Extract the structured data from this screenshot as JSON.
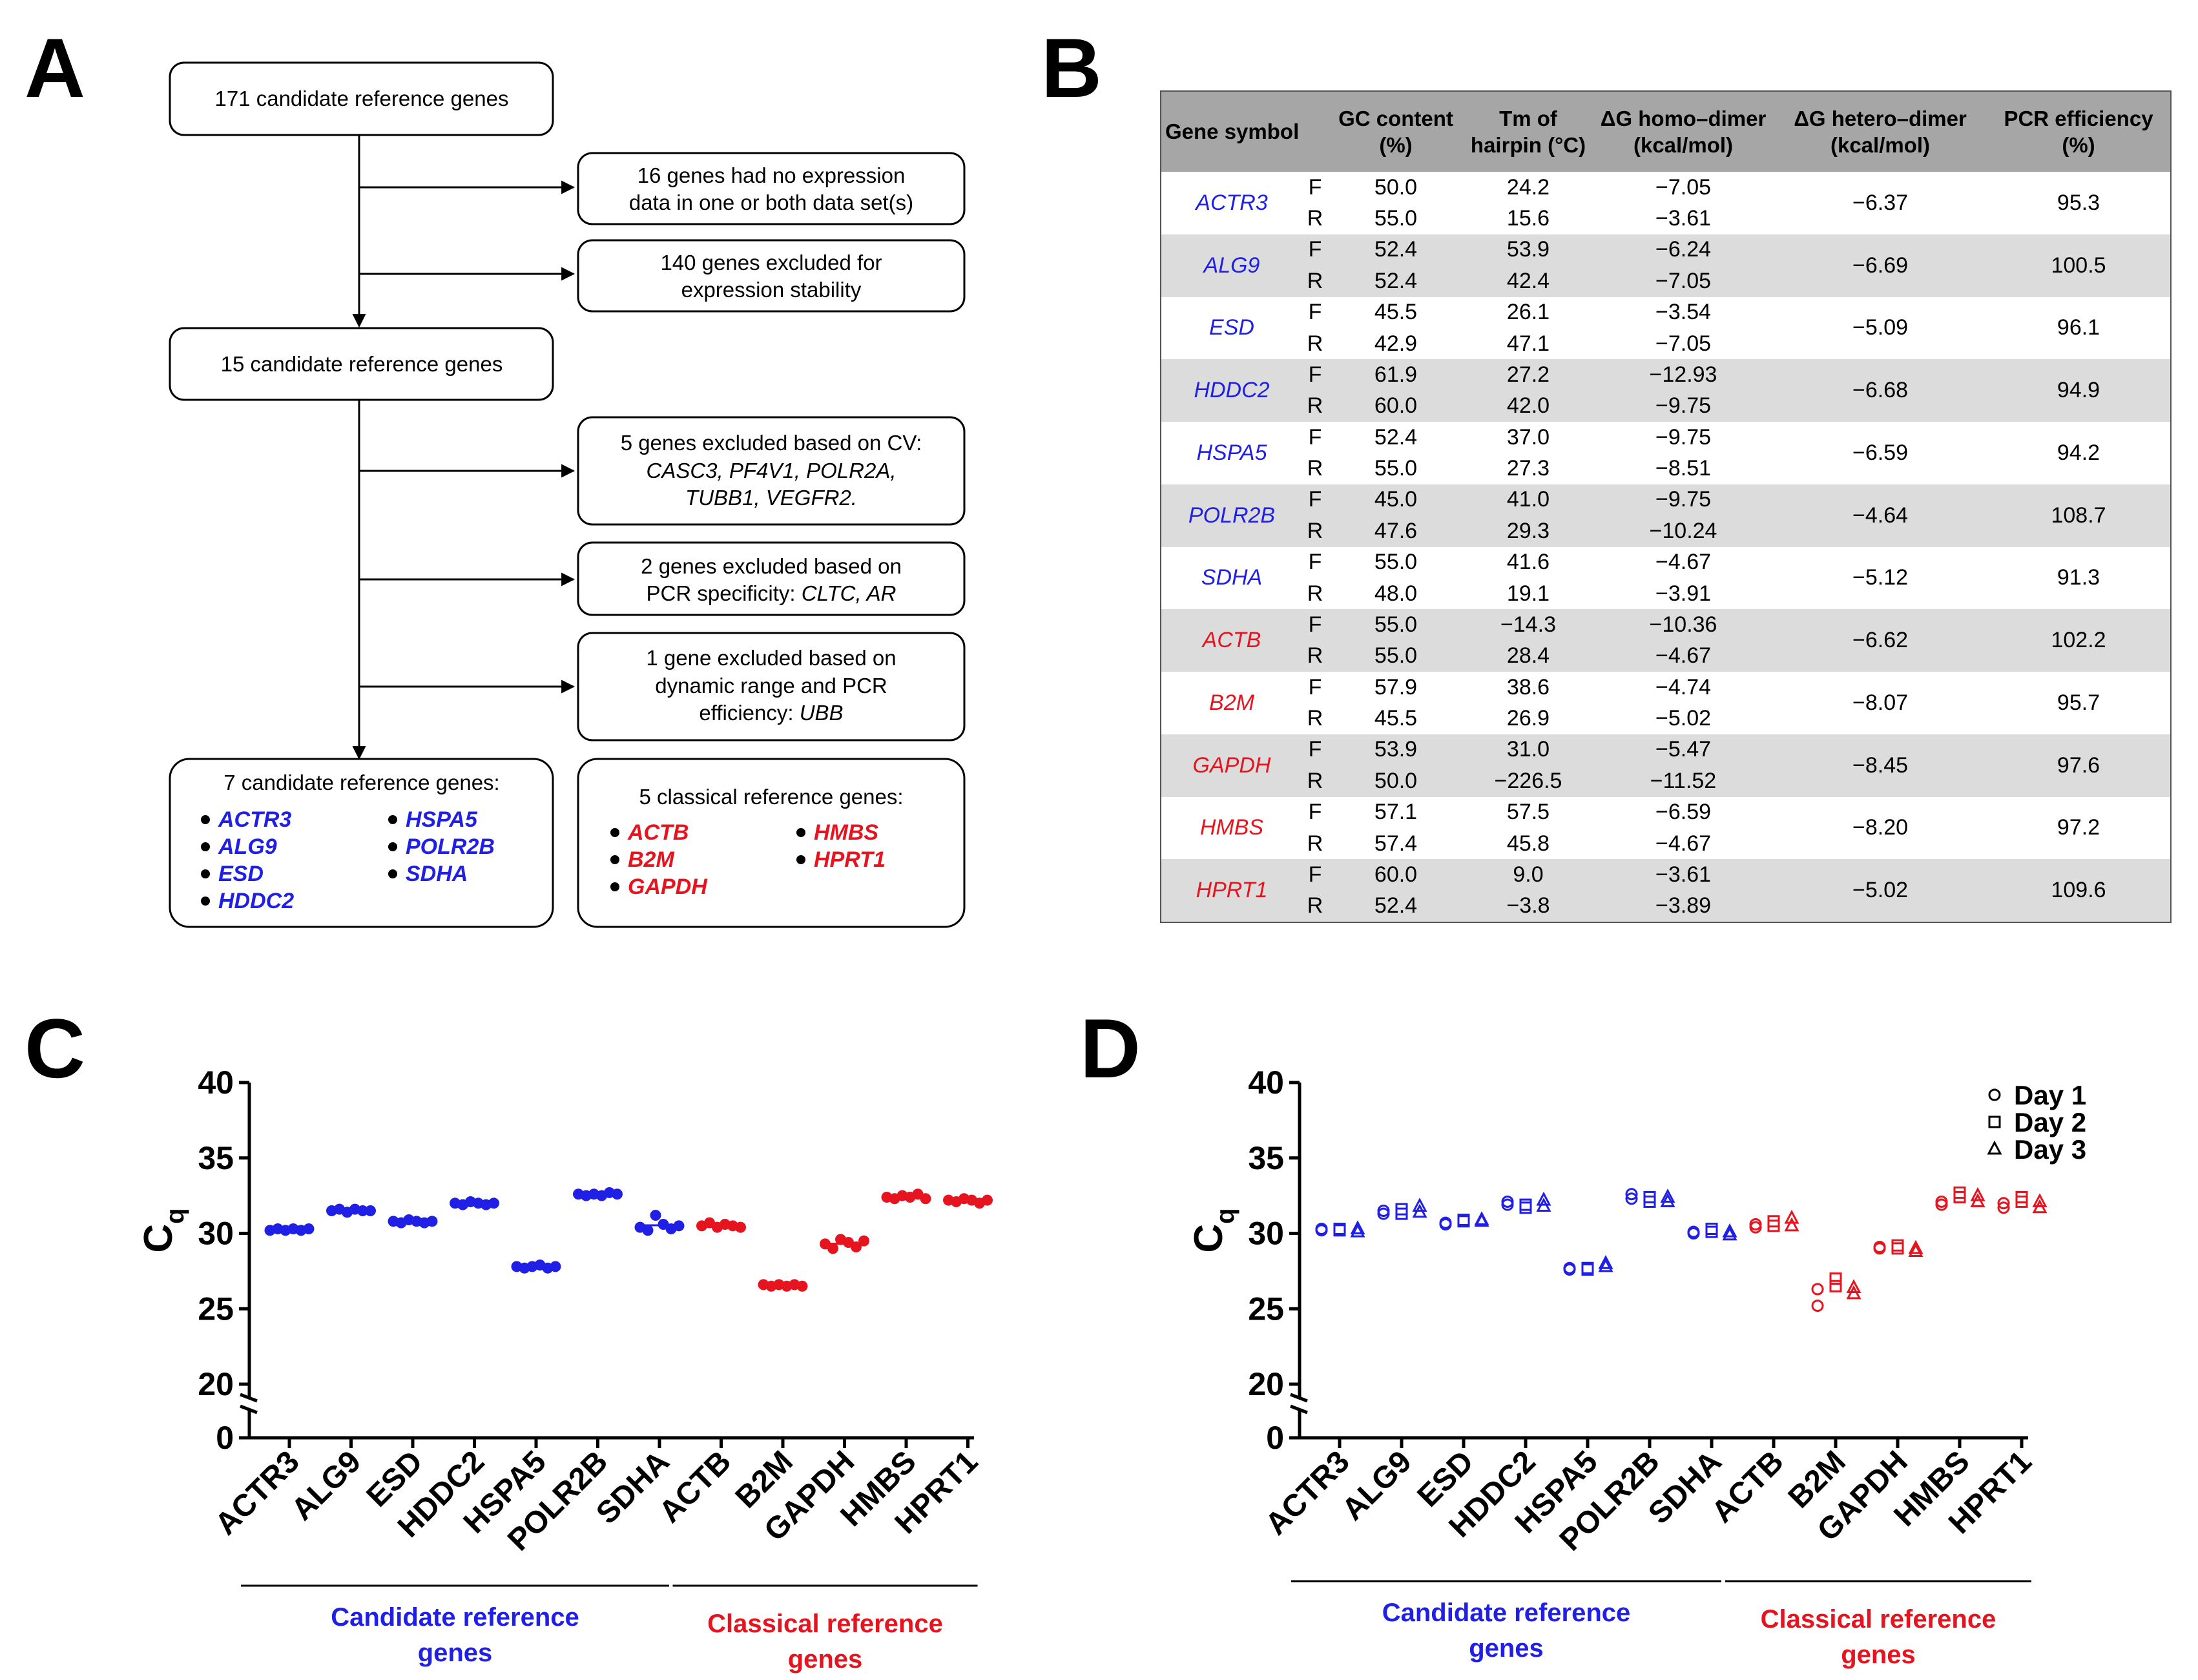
{
  "panels": {
    "a": "A",
    "b": "B",
    "c": "C",
    "d": "D"
  },
  "colors": {
    "candidate": "#1f1fe6",
    "classical": "#e6141e",
    "table_header": "#a6a6a6",
    "table_shade": "#dcdcdc"
  },
  "flowchart": {
    "box1": "171 candidate reference genes",
    "excl1": [
      "16 genes had no expression",
      "data in one or both data set(s)"
    ],
    "excl2": [
      "140 genes excluded for",
      "expression stability"
    ],
    "box2": "15 candidate reference genes",
    "excl3": {
      "line1": "5 genes excluded based on CV:",
      "line2": "CASC3, PF4V1, POLR2A,",
      "line3": "TUBB1, VEGFR2."
    },
    "excl4": {
      "line1": "2 genes excluded based on",
      "line2_plain": "PCR specificity: ",
      "line2_italic": "CLTC, AR"
    },
    "excl5": {
      "line1": "1 gene excluded based on",
      "line2": "dynamic range and PCR",
      "line3_plain": "efficiency: ",
      "line3_italic": "UBB"
    },
    "candidate_box": {
      "title": "7 candidate reference genes:",
      "col1": [
        "ACTR3",
        "ALG9",
        "ESD",
        "HDDC2"
      ],
      "col2": [
        "HSPA5",
        "POLR2B",
        "SDHA"
      ]
    },
    "classical_box": {
      "title": "5 classical reference genes:",
      "col1": [
        "ACTB",
        "B2M",
        "GAPDH"
      ],
      "col2": [
        "HMBS",
        "HPRT1"
      ]
    }
  },
  "table": {
    "headers": [
      "Gene symbol",
      "GC content (%)",
      "Tm of hairpin (°C)",
      "ΔG homo–dimer (kcal/mol)",
      "ΔG hetero–dimer (kcal/mol)",
      "PCR efficiency (%)"
    ],
    "rows": [
      {
        "gene": "ACTR3",
        "group": "candidate",
        "F": {
          "gc": "50.0",
          "tm": "24.2",
          "homo": "−7.05"
        },
        "R": {
          "gc": "55.0",
          "tm": "15.6",
          "homo": "−3.61"
        },
        "hetero": "−6.37",
        "eff": "95.3"
      },
      {
        "gene": "ALG9",
        "group": "candidate",
        "F": {
          "gc": "52.4",
          "tm": "53.9",
          "homo": "−6.24"
        },
        "R": {
          "gc": "52.4",
          "tm": "42.4",
          "homo": "−7.05"
        },
        "hetero": "−6.69",
        "eff": "100.5"
      },
      {
        "gene": "ESD",
        "group": "candidate",
        "F": {
          "gc": "45.5",
          "tm": "26.1",
          "homo": "−3.54"
        },
        "R": {
          "gc": "42.9",
          "tm": "47.1",
          "homo": "−7.05"
        },
        "hetero": "−5.09",
        "eff": "96.1"
      },
      {
        "gene": "HDDC2",
        "group": "candidate",
        "F": {
          "gc": "61.9",
          "tm": "27.2",
          "homo": "−12.93"
        },
        "R": {
          "gc": "60.0",
          "tm": "42.0",
          "homo": "−9.75"
        },
        "hetero": "−6.68",
        "eff": "94.9"
      },
      {
        "gene": "HSPA5",
        "group": "candidate",
        "F": {
          "gc": "52.4",
          "tm": "37.0",
          "homo": "−9.75"
        },
        "R": {
          "gc": "55.0",
          "tm": "27.3",
          "homo": "−8.51"
        },
        "hetero": "−6.59",
        "eff": "94.2"
      },
      {
        "gene": "POLR2B",
        "group": "candidate",
        "F": {
          "gc": "45.0",
          "tm": "41.0",
          "homo": "−9.75"
        },
        "R": {
          "gc": "47.6",
          "tm": "29.3",
          "homo": "−10.24"
        },
        "hetero": "−4.64",
        "eff": "108.7"
      },
      {
        "gene": "SDHA",
        "group": "candidate",
        "F": {
          "gc": "55.0",
          "tm": "41.6",
          "homo": "−4.67"
        },
        "R": {
          "gc": "48.0",
          "tm": "19.1",
          "homo": "−3.91"
        },
        "hetero": "−5.12",
        "eff": "91.3"
      },
      {
        "gene": "ACTB",
        "group": "classical",
        "F": {
          "gc": "55.0",
          "tm": "−14.3",
          "homo": "−10.36"
        },
        "R": {
          "gc": "55.0",
          "tm": "28.4",
          "homo": "−4.67"
        },
        "hetero": "−6.62",
        "eff": "102.2"
      },
      {
        "gene": "B2M",
        "group": "classical",
        "F": {
          "gc": "57.9",
          "tm": "38.6",
          "homo": "−4.74"
        },
        "R": {
          "gc": "45.5",
          "tm": "26.9",
          "homo": "−5.02"
        },
        "hetero": "−8.07",
        "eff": "95.7"
      },
      {
        "gene": "GAPDH",
        "group": "classical",
        "F": {
          "gc": "53.9",
          "tm": "31.0",
          "homo": "−5.47"
        },
        "R": {
          "gc": "50.0",
          "tm": "−226.5",
          "homo": "−11.52"
        },
        "hetero": "−8.45",
        "eff": "97.6"
      },
      {
        "gene": "HMBS",
        "group": "classical",
        "F": {
          "gc": "57.1",
          "tm": "57.5",
          "homo": "−6.59"
        },
        "R": {
          "gc": "57.4",
          "tm": "45.8",
          "homo": "−4.67"
        },
        "hetero": "−8.20",
        "eff": "97.2"
      },
      {
        "gene": "HPRT1",
        "group": "classical",
        "F": {
          "gc": "60.0",
          "tm": "9.0",
          "homo": "−3.61"
        },
        "R": {
          "gc": "52.4",
          "tm": "−3.8",
          "homo": "−3.89"
        },
        "hetero": "−5.02",
        "eff": "109.6"
      }
    ]
  },
  "chart_data": [
    {
      "panel": "C",
      "type": "scatter",
      "ylabel": "Cq",
      "yticks": [
        0,
        20,
        25,
        30,
        35,
        40
      ],
      "ylim": [
        20,
        40
      ],
      "axis_break": true,
      "categories": [
        "ACTR3",
        "ALG9",
        "ESD",
        "HDDC2",
        "HSPA5",
        "POLR2B",
        "SDHA",
        "ACTB",
        "B2M",
        "GAPDH",
        "HMBS",
        "HPRT1"
      ],
      "colors": [
        "#1f1fe6",
        "#1f1fe6",
        "#1f1fe6",
        "#1f1fe6",
        "#1f1fe6",
        "#1f1fe6",
        "#1f1fe6",
        "#e6141e",
        "#e6141e",
        "#e6141e",
        "#e6141e",
        "#e6141e"
      ],
      "values": [
        [
          30.2,
          30.3,
          30.2,
          30.3,
          30.2,
          30.3
        ],
        [
          31.5,
          31.6,
          31.4,
          31.6,
          31.5,
          31.5
        ],
        [
          30.8,
          30.7,
          30.9,
          30.8,
          30.7,
          30.8
        ],
        [
          32.0,
          31.9,
          32.1,
          32.0,
          31.9,
          32.0
        ],
        [
          27.8,
          27.7,
          27.8,
          27.9,
          27.7,
          27.8
        ],
        [
          32.6,
          32.5,
          32.6,
          32.5,
          32.7,
          32.6
        ],
        [
          30.4,
          30.2,
          31.2,
          30.6,
          30.3,
          30.5
        ],
        [
          30.5,
          30.7,
          30.4,
          30.6,
          30.5,
          30.4
        ],
        [
          26.6,
          26.5,
          26.6,
          26.5,
          26.6,
          26.5
        ],
        [
          29.3,
          29.0,
          29.6,
          29.4,
          29.1,
          29.5
        ],
        [
          32.4,
          32.3,
          32.5,
          32.4,
          32.6,
          32.3
        ],
        [
          32.2,
          32.1,
          32.3,
          32.2,
          32.0,
          32.2
        ]
      ],
      "group_labels": [
        {
          "lines": [
            "Candidate reference",
            "genes"
          ],
          "color": "#1f1fe6"
        },
        {
          "lines": [
            "Classical reference",
            "genes"
          ],
          "color": "#e6141e"
        }
      ]
    },
    {
      "panel": "D",
      "type": "scatter",
      "ylabel": "Cq",
      "yticks": [
        0,
        20,
        25,
        30,
        35,
        40
      ],
      "ylim": [
        20,
        40
      ],
      "axis_break": true,
      "categories": [
        "ACTR3",
        "ALG9",
        "ESD",
        "HDDC2",
        "HSPA5",
        "POLR2B",
        "SDHA",
        "ACTB",
        "B2M",
        "GAPDH",
        "HMBS",
        "HPRT1"
      ],
      "colors": [
        "#1f1fe6",
        "#1f1fe6",
        "#1f1fe6",
        "#1f1fe6",
        "#1f1fe6",
        "#1f1fe6",
        "#1f1fe6",
        "#e6141e",
        "#e6141e",
        "#e6141e",
        "#e6141e",
        "#e6141e"
      ],
      "legend": [
        "Day 1",
        "Day 2",
        "Day 3"
      ],
      "legend_markers": [
        "circle",
        "square",
        "triangle"
      ],
      "legend_position": "top-right",
      "series": [
        {
          "name": "Day 1",
          "marker": "circle",
          "values": [
            [
              30.3,
              30.2
            ],
            [
              31.5,
              31.3
            ],
            [
              30.7,
              30.6
            ],
            [
              32.1,
              31.9
            ],
            [
              27.6,
              27.7
            ],
            [
              32.6,
              32.3
            ],
            [
              30.1,
              30.0
            ],
            [
              30.6,
              30.4
            ],
            [
              26.3,
              25.2
            ],
            [
              29.1,
              29.0
            ],
            [
              32.1,
              31.9
            ],
            [
              32.0,
              31.7
            ]
          ]
        },
        {
          "name": "Day 2",
          "marker": "square",
          "values": [
            [
              30.3,
              30.2
            ],
            [
              31.6,
              31.3
            ],
            [
              30.9,
              30.8
            ],
            [
              31.9,
              31.7
            ],
            [
              27.6,
              27.7
            ],
            [
              32.4,
              32.1
            ],
            [
              30.3,
              30.1
            ],
            [
              30.8,
              30.5
            ],
            [
              27.0,
              26.5
            ],
            [
              29.2,
              29.0
            ],
            [
              32.7,
              32.4
            ],
            [
              32.4,
              32.1
            ]
          ]
        },
        {
          "name": "Day 3",
          "marker": "triangle",
          "values": [
            [
              30.3,
              30.1
            ],
            [
              31.8,
              31.4
            ],
            [
              30.9,
              30.8
            ],
            [
              32.2,
              31.8
            ],
            [
              28.0,
              27.8
            ],
            [
              32.4,
              32.1
            ],
            [
              30.1,
              29.9
            ],
            [
              31.0,
              30.5
            ],
            [
              26.4,
              26.0
            ],
            [
              29.0,
              28.8
            ],
            [
              32.5,
              32.1
            ],
            [
              32.1,
              31.7
            ]
          ]
        }
      ],
      "group_labels": [
        {
          "lines": [
            "Candidate reference",
            "genes"
          ],
          "color": "#1f1fe6"
        },
        {
          "lines": [
            "Classical reference",
            "genes"
          ],
          "color": "#e6141e"
        }
      ]
    }
  ]
}
